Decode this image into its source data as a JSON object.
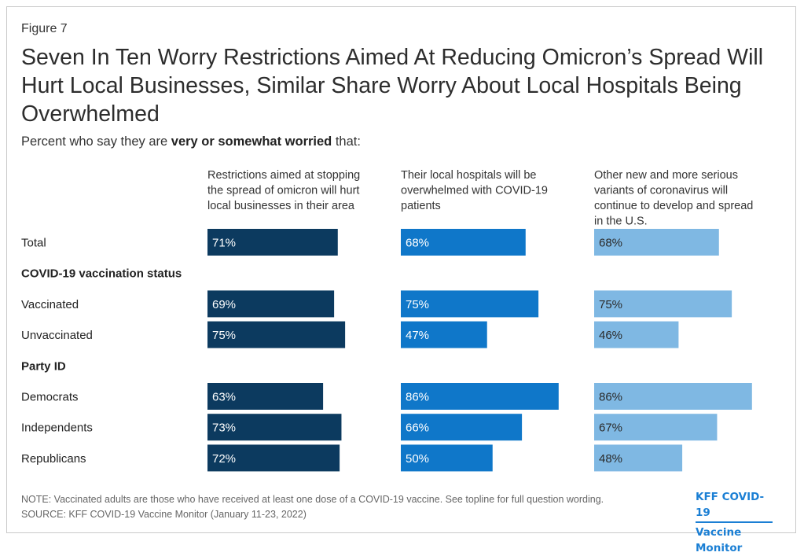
{
  "figure_label": "Figure 7",
  "title": "Seven In Ten Worry Restrictions Aimed At Reducing Omicron’s Spread Will Hurt Local Businesses, Similar Share Worry About Local Hospitals Being Overwhelmed",
  "subtitle": {
    "prefix": "Percent who say they are ",
    "emphasis": "very or somewhat worried",
    "suffix": " that:"
  },
  "chart_data": {
    "type": "bar",
    "orientation": "horizontal",
    "panels": [
      {
        "header_lines": [
          "Restrictions aimed at stopping",
          "the spread of omicron will hurt",
          "local businesses in their area"
        ],
        "color": "#0c3a5f"
      },
      {
        "header_lines": [
          "Their local hospitals will be",
          "overwhelmed with COVID-19",
          "patients"
        ],
        "color": "#0f77c9"
      },
      {
        "header_lines": [
          "Other new and more serious",
          "variants of coronavirus will",
          "continue to develop and spread",
          "in the U.S."
        ],
        "color": "#7fb8e3"
      }
    ],
    "rows": [
      {
        "label": "Total",
        "values": [
          71,
          68,
          68
        ]
      },
      {
        "label": "COVID-19 vaccination status",
        "group_header": true
      },
      {
        "label": "Vaccinated",
        "values": [
          69,
          75,
          75
        ]
      },
      {
        "label": "Unvaccinated",
        "values": [
          75,
          47,
          46
        ]
      },
      {
        "label": "Party ID",
        "group_header": true
      },
      {
        "label": "Democrats",
        "values": [
          63,
          86,
          86
        ]
      },
      {
        "label": "Independents",
        "values": [
          73,
          66,
          67
        ]
      },
      {
        "label": "Republicans",
        "values": [
          72,
          50,
          48
        ]
      }
    ],
    "value_suffix": "%",
    "xlim": [
      0,
      100
    ]
  },
  "note": "NOTE: Vaccinated adults are those who have received at least one dose of a COVID-19 vaccine. See topline for full question wording.",
  "source": "SOURCE: KFF COVID-19 Vaccine Monitor (January 11-23, 2022)",
  "logo": {
    "line1": "KFF COVID-19",
    "line2": "Vaccine Monitor"
  }
}
